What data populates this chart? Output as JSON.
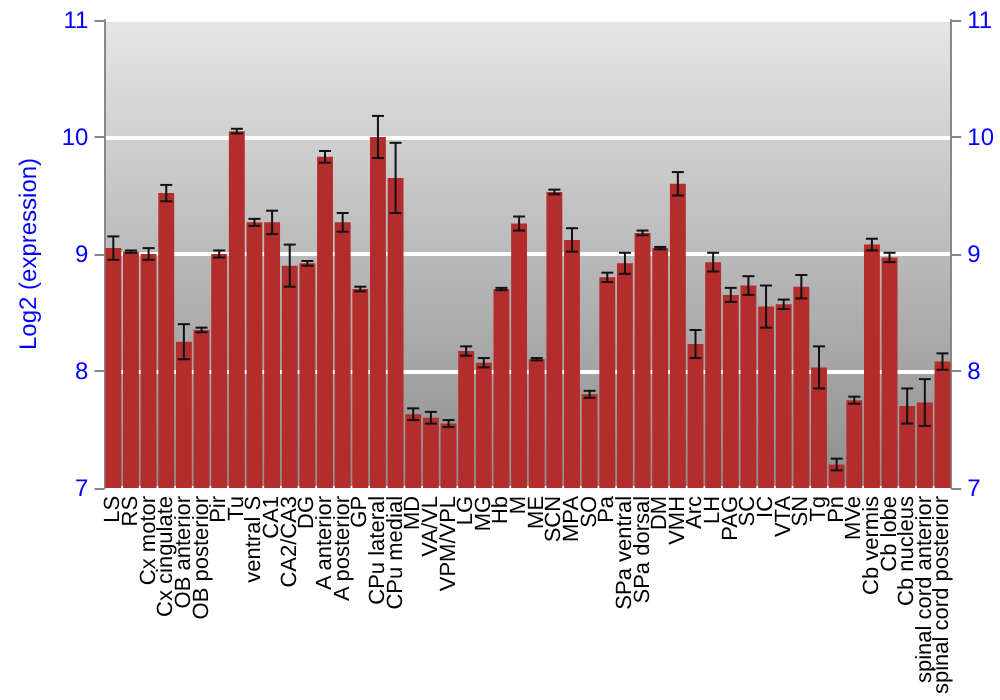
{
  "chart_data": {
    "type": "bar",
    "ylabel": "Log2 (expression)",
    "categories": [
      "LS",
      "RS",
      "Cx motor",
      "Cx cingulate",
      "OB anterior",
      "OB posterior",
      "Pir",
      "Tu",
      "ventral S",
      "CA1",
      "CA2/CA3",
      "DG",
      "A anterior",
      "A posterior",
      "GP",
      "CPu lateral",
      "CPu medial",
      "MD",
      "VA/VL",
      "VPM/VPL",
      "LG",
      "MG",
      "Hb",
      "M",
      "ME",
      "SCN",
      "MPA",
      "SO",
      "Pa",
      "SPa ventral",
      "SPa dorsal",
      "DM",
      "VMH",
      "Arc",
      "LH",
      "PAG",
      "SC",
      "IC",
      "VTA",
      "SN",
      "Tg",
      "Pn",
      "MVe",
      "Cb vermis",
      "Cb lobe",
      "Cb nucleus",
      "spinal cord anterior",
      "spinal cord posterior"
    ],
    "values": [
      9.05,
      9.02,
      9.0,
      9.52,
      8.25,
      8.35,
      9.0,
      10.05,
      9.27,
      9.27,
      8.9,
      8.92,
      9.83,
      9.27,
      8.7,
      10.0,
      9.65,
      7.63,
      7.6,
      7.55,
      8.17,
      8.07,
      8.7,
      9.26,
      8.1,
      9.53,
      9.12,
      7.8,
      8.8,
      8.92,
      9.18,
      9.05,
      9.6,
      8.23,
      8.93,
      8.65,
      8.73,
      8.55,
      8.57,
      8.72,
      8.03,
      7.2,
      7.75,
      9.08,
      8.97,
      7.7,
      7.73,
      8.08
    ],
    "errors": [
      0.1,
      0.01,
      0.05,
      0.07,
      0.15,
      0.02,
      0.03,
      0.02,
      0.03,
      0.1,
      0.18,
      0.02,
      0.05,
      0.08,
      0.02,
      0.18,
      0.3,
      0.05,
      0.05,
      0.03,
      0.04,
      0.04,
      0.01,
      0.06,
      0.01,
      0.02,
      0.1,
      0.03,
      0.04,
      0.09,
      0.02,
      0.01,
      0.1,
      0.12,
      0.08,
      0.06,
      0.08,
      0.18,
      0.04,
      0.1,
      0.18,
      0.05,
      0.03,
      0.05,
      0.04,
      0.15,
      0.2,
      0.07
    ],
    "color": "#b32d2d",
    "ylim": [
      7,
      11
    ],
    "yticks": [
      7,
      8,
      9,
      10,
      11
    ],
    "y2lim": [
      7,
      11
    ],
    "y2ticks": [
      7,
      8,
      9,
      10,
      11
    ],
    "grid": "y"
  }
}
